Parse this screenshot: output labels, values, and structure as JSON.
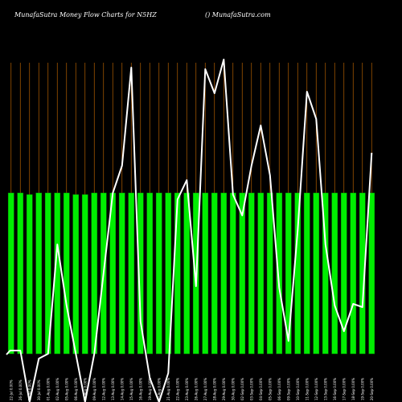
{
  "header": {
    "title": "MunafaSutra  Money Flow  Charts for N5HZ",
    "source": "() MunafaSutra.com"
  },
  "colors": {
    "background": "#000000",
    "bar": "#00ee00",
    "bar_edge": "#009900",
    "grid": "#b35f00",
    "line": "#ffffff"
  },
  "chart_data": {
    "type": "bar",
    "title": "MunafaSutra  Money Flow  Charts for N5HZ",
    "xlabel": "",
    "ylabel": "",
    "grid": true,
    "categories": [
      "22-Jul 0.00%",
      "26-Jul 0.00%",
      "29-Jul 0.00%",
      "30-Jul 0.00%",
      "01-Aug 0.00%",
      "02-Aug 0.00%",
      "05-Aug 0.00%",
      "06-Aug 0.00%",
      "08-Aug 0.00%",
      "09-Aug 0.00%",
      "12-Aug 0.00%",
      "13-Aug 0.00%",
      "14-Aug 0.00%",
      "15-Aug 0.00%",
      "16-Aug 0.00%",
      "19-Aug 0.00%",
      "20-Aug 0.00%",
      "21-Aug 0.00%",
      "22-Aug 0.00%",
      "23-Aug 0.00%",
      "26-Aug 0.00%",
      "27-Aug 0.00%",
      "28-Aug 0.00%",
      "29-Aug 0.00%",
      "30-Aug 0.00%",
      "02-Sep 0.00%",
      "03-Sep 0.00%",
      "04-Sep 0.00%",
      "05-Sep 0.00%",
      "06-Sep 0.00%",
      "09-Sep 0.00%",
      "10-Sep 0.00%",
      "11-Sep 0.00%",
      "12-Sep 0.00%",
      "13-Sep 0.00%",
      "16-Sep 0.00%",
      "17-Sep 0.00%",
      "18-Sep 0.00%",
      "19-Sep 0.00%",
      "20-Sep 0.00%"
    ],
    "bar_values": [
      100,
      100,
      99,
      100,
      100,
      100,
      100,
      99,
      99,
      100,
      100,
      100,
      100,
      100,
      100,
      100,
      100,
      100,
      100,
      100,
      100,
      100,
      100,
      100,
      100,
      100,
      100,
      100,
      100,
      100,
      100,
      100,
      100,
      100,
      100,
      100,
      100,
      100,
      100,
      100
    ],
    "ylim": [
      0,
      180
    ],
    "line_series": {
      "x_positions": [
        0,
        0.4,
        1.5,
        2.5,
        3.5,
        4.5,
        5.5,
        6.5,
        7.5,
        8.5,
        9.5,
        10.5,
        11.5,
        12.5,
        13.5,
        14.5,
        15.5,
        16.5,
        17.5,
        18.5,
        19.5,
        20.5,
        21.5,
        22.5,
        23.5,
        24.5,
        25.5,
        26.5,
        27.5,
        28.5,
        29.5,
        30.5,
        31.5,
        32.5,
        33.5,
        34.5,
        35.5,
        36.5,
        37.5,
        38.5,
        39.5
      ],
      "values": [
        -0.5,
        2,
        2,
        -30,
        -3,
        0,
        68,
        30,
        0,
        -30,
        0,
        50,
        100,
        117,
        178,
        20,
        -15,
        -30,
        -12,
        96,
        108,
        42,
        177,
        162,
        183,
        99,
        86,
        117,
        142,
        111,
        41,
        8,
        77,
        163,
        146,
        68,
        30,
        14,
        31,
        29,
        125
      ]
    }
  }
}
